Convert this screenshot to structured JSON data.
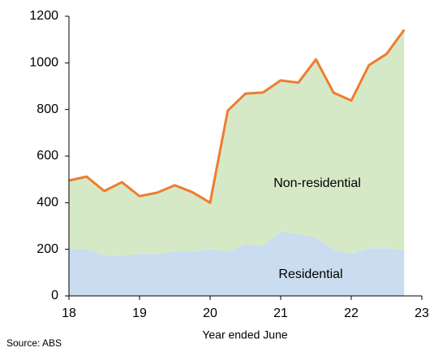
{
  "chart_data": {
    "type": "stacked_area",
    "x": [
      18,
      18.25,
      18.5,
      18.75,
      19,
      19.25,
      19.5,
      19.75,
      20,
      20.25,
      20.5,
      20.75,
      21,
      21.25,
      21.5,
      21.75,
      22,
      22.25,
      22.5,
      22.75
    ],
    "series": [
      {
        "name": "Residential",
        "color": "#c9dcf0",
        "values": [
          205,
          200,
          175,
          170,
          180,
          180,
          190,
          190,
          200,
          190,
          220,
          215,
          275,
          265,
          250,
          200,
          180,
          205,
          205,
          195
        ]
      },
      {
        "name": "Non-residential",
        "color": "#d6e9c6",
        "values": [
          290,
          312,
          275,
          318,
          248,
          263,
          285,
          255,
          200,
          605,
          648,
          658,
          650,
          650,
          765,
          672,
          658,
          785,
          833,
          947
        ]
      }
    ],
    "top_line_color": "#ed7d31",
    "xlim": [
      18,
      23
    ],
    "xticks": [
      18,
      19,
      20,
      21,
      22,
      23
    ],
    "ylim": [
      0,
      1200
    ],
    "yticks": [
      0,
      200,
      400,
      600,
      800,
      1000,
      1200
    ],
    "xlabel": "Year ended June",
    "source": "Source: ABS"
  }
}
